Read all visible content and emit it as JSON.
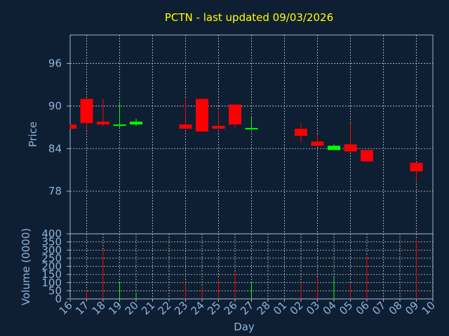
{
  "title": "PCTN - last updated 09/03/2026",
  "colors": {
    "background": "#0f1f33",
    "axis": "#8fb4da",
    "grid": "#c8c8c8",
    "title": "#ffff00",
    "up": "#00ff00",
    "down": "#ff0000",
    "label": "#8fb4da"
  },
  "chart_data": [
    {
      "type": "candlestick",
      "ylabel": "Price",
      "xlabel": "",
      "ylim": [
        72,
        100
      ],
      "yticks": [
        78,
        84,
        90,
        96
      ],
      "grid": true,
      "categories": [
        "16",
        "17",
        "18",
        "19",
        "20",
        "21",
        "22",
        "23",
        "24",
        "25",
        "26",
        "27",
        "28",
        "01",
        "02",
        "03",
        "04",
        "05",
        "06",
        "07",
        "08",
        "09",
        "10"
      ],
      "candles": [
        {
          "day": "16",
          "open": 87.4,
          "close": 86.8,
          "high": 87.4,
          "low": 86.8
        },
        {
          "day": "17",
          "open": 91.0,
          "close": 87.6,
          "high": 91.0,
          "low": 86.6
        },
        {
          "day": "18",
          "open": 87.8,
          "close": 87.4,
          "high": 91.0,
          "low": 87.2
        },
        {
          "day": "19",
          "open": 87.2,
          "close": 87.4,
          "high": 90.6,
          "low": 87.0
        },
        {
          "day": "20",
          "open": 87.4,
          "close": 87.8,
          "high": 88.2,
          "low": 87.2
        },
        {
          "day": "23",
          "open": 87.4,
          "close": 86.8,
          "high": 91.0,
          "low": 86.8
        },
        {
          "day": "24",
          "open": 91.0,
          "close": 86.4,
          "high": 91.0,
          "low": 86.4
        },
        {
          "day": "25",
          "open": 87.2,
          "close": 86.8,
          "high": 89.4,
          "low": 86.8
        },
        {
          "day": "26",
          "open": 90.2,
          "close": 87.4,
          "high": 90.2,
          "low": 87.0
        },
        {
          "day": "27",
          "open": 86.8,
          "close": 86.9,
          "high": 88.4,
          "low": 86.8
        },
        {
          "day": "02",
          "open": 86.8,
          "close": 85.8,
          "high": 87.6,
          "low": 84.8
        },
        {
          "day": "03",
          "open": 85.0,
          "close": 84.4,
          "high": 86.0,
          "low": 84.4
        },
        {
          "day": "04",
          "open": 83.8,
          "close": 84.4,
          "high": 84.6,
          "low": 83.8
        },
        {
          "day": "05",
          "open": 84.6,
          "close": 83.6,
          "high": 87.6,
          "low": 83.6
        },
        {
          "day": "06",
          "open": 83.8,
          "close": 82.2,
          "high": 83.8,
          "low": 82.2
        },
        {
          "day": "09",
          "open": 82.0,
          "close": 80.8,
          "high": 82.0,
          "low": 79.4
        }
      ]
    },
    {
      "type": "bar",
      "ylabel": "Volume (0000)",
      "xlabel": "Day",
      "ylim": [
        0,
        400
      ],
      "yticks": [
        0,
        50,
        100,
        150,
        200,
        250,
        300,
        350,
        400
      ],
      "grid": true,
      "categories": [
        "16",
        "17",
        "18",
        "19",
        "20",
        "21",
        "22",
        "23",
        "24",
        "25",
        "26",
        "27",
        "28",
        "01",
        "02",
        "03",
        "04",
        "05",
        "06",
        "07",
        "08",
        "09",
        "10"
      ],
      "bars": [
        {
          "day": "16",
          "value": 5,
          "dir": "down"
        },
        {
          "day": "17",
          "value": 55,
          "dir": "down"
        },
        {
          "day": "18",
          "value": 300,
          "dir": "down"
        },
        {
          "day": "19",
          "value": 100,
          "dir": "up"
        },
        {
          "day": "20",
          "value": 40,
          "dir": "up"
        },
        {
          "day": "23",
          "value": 100,
          "dir": "down"
        },
        {
          "day": "24",
          "value": 75,
          "dir": "down"
        },
        {
          "day": "25",
          "value": 125,
          "dir": "down"
        },
        {
          "day": "26",
          "value": 165,
          "dir": "down"
        },
        {
          "day": "27",
          "value": 100,
          "dir": "up"
        },
        {
          "day": "02",
          "value": 100,
          "dir": "down"
        },
        {
          "day": "03",
          "value": 130,
          "dir": "down"
        },
        {
          "day": "04",
          "value": 135,
          "dir": "up"
        },
        {
          "day": "05",
          "value": 95,
          "dir": "down"
        },
        {
          "day": "06",
          "value": 265,
          "dir": "down"
        },
        {
          "day": "09",
          "value": 370,
          "dir": "down"
        }
      ]
    }
  ]
}
